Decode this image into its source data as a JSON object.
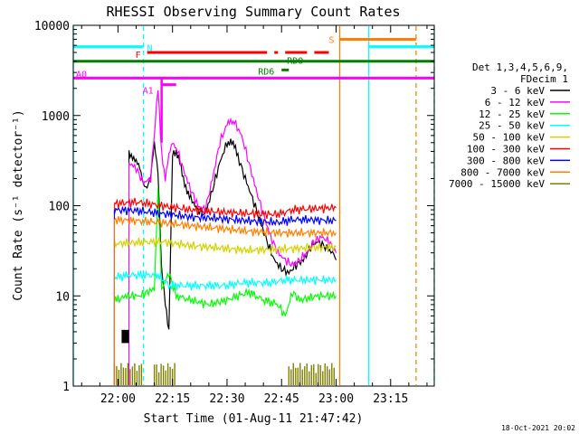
{
  "chart_data": {
    "type": "line",
    "title": "RHESSI Observing Summary Count Rates",
    "xlabel": "Start Time (01-Aug-11 21:47:42)",
    "ylabel": "Count Rate (s⁻¹ detector⁻¹)",
    "yscale": "log",
    "xlim": [
      "21:47:42",
      "23:27:00"
    ],
    "ylim": [
      1,
      10000
    ],
    "x_ticks": [
      "22:00",
      "22:15",
      "22:30",
      "22:45",
      "23:00",
      "23:15"
    ],
    "y_ticks": [
      "1",
      "10",
      "100",
      "1000",
      "10000"
    ],
    "grid": false,
    "legend": {
      "position": "right",
      "title_lines": [
        "Det 1,3,4,5,6,9,",
        "FDecim 1"
      ],
      "entries": [
        "3 - 6 keV",
        "6 - 12 keV",
        "12 - 25 keV",
        "25 - 50 keV",
        "50 - 100 keV",
        "100 - 300 keV",
        "300 - 800 keV",
        "800 - 7000 keV",
        "7000 - 15000 keV"
      ]
    },
    "series": [
      {
        "name": "3 - 6 keV",
        "color": "#000000",
        "x": [
          "22:03:00",
          "22:04:00",
          "22:05:00",
          "22:06:00",
          "22:07:00",
          "22:08:00",
          "22:09:00",
          "22:10:00",
          "22:11:00",
          "22:12:00",
          "22:13:00",
          "22:14:00",
          "22:15:00",
          "22:16:00",
          "22:17:00",
          "22:18:00",
          "22:19:00",
          "22:20:00",
          "22:22:00",
          "22:24:00",
          "22:26:00",
          "22:28:00",
          "22:30:00",
          "22:31:00",
          "22:32:00",
          "22:33:00",
          "22:35:00",
          "22:37:00",
          "22:39:00",
          "22:41:00",
          "22:43:00",
          "22:45:00",
          "22:47:00",
          "22:49:00",
          "22:51:00",
          "22:53:00",
          "22:55:00",
          "22:57:00",
          "22:59:00",
          "23:00:00"
        ],
        "y": [
          400,
          350,
          300,
          260,
          180,
          160,
          200,
          500,
          250,
          20,
          8,
          4,
          400,
          380,
          300,
          200,
          150,
          120,
          90,
          80,
          150,
          300,
          500,
          520,
          450,
          350,
          200,
          120,
          70,
          40,
          25,
          20,
          18,
          22,
          25,
          35,
          40,
          35,
          30,
          25
        ]
      },
      {
        "name": "6 - 12 keV",
        "color": "#ff00ff",
        "x": [
          "22:03:00",
          "22:05:00",
          "22:07:00",
          "22:09:00",
          "22:11:00",
          "22:12:00",
          "22:13:00",
          "22:14:00",
          "22:15:00",
          "22:16:00",
          "22:18:00",
          "22:20:00",
          "22:22:00",
          "22:24:00",
          "22:26:00",
          "22:28:00",
          "22:30:00",
          "22:31:00",
          "22:32:00",
          "22:34:00",
          "22:36:00",
          "22:38:00",
          "22:40:00",
          "22:42:00",
          "22:44:00",
          "22:46:00",
          "22:48:00",
          "22:50:00",
          "22:52:00",
          "22:54:00",
          "22:56:00",
          "22:58:00",
          "23:00:00"
        ],
        "y": [
          300,
          260,
          180,
          200,
          2000,
          400,
          200,
          350,
          500,
          450,
          250,
          150,
          100,
          90,
          200,
          500,
          800,
          900,
          850,
          600,
          300,
          150,
          80,
          45,
          30,
          25,
          22,
          25,
          30,
          40,
          45,
          40,
          30
        ]
      },
      {
        "name": "12 - 25 keV",
        "color": "#00ff00",
        "x": [
          "21:59:00",
          "22:00:00",
          "22:02:00",
          "22:04:00",
          "22:06:00",
          "22:08:00",
          "22:10:00",
          "22:11:00",
          "22:12:00",
          "22:14:00",
          "22:16:00",
          "22:20:00",
          "22:25:00",
          "22:30:00",
          "22:33:00",
          "22:36:00",
          "22:40:00",
          "22:44:00",
          "22:46:00",
          "22:48:00",
          "22:50:00",
          "22:55:00",
          "23:00:00"
        ],
        "y": [
          9,
          9,
          10,
          10,
          10,
          11,
          12,
          150,
          12,
          18,
          10,
          9,
          8,
          9,
          10,
          11,
          9,
          8,
          6,
          11,
          9,
          10,
          10
        ]
      },
      {
        "name": "25 - 50 keV",
        "color": "#00ffff",
        "x": [
          "21:59:00",
          "22:03:00",
          "22:07:00",
          "22:11:00",
          "22:14:00",
          "22:18:00",
          "22:22:00",
          "22:26:00",
          "22:30:00",
          "22:34:00",
          "22:38:00",
          "22:42:00",
          "22:46:00",
          "22:50:00",
          "22:55:00",
          "23:00:00"
        ],
        "y": [
          16,
          17,
          17,
          17,
          13,
          13,
          13,
          13,
          13,
          14,
          14,
          14,
          15,
          15,
          15,
          15
        ]
      },
      {
        "name": "50 - 100 keV",
        "color": "#d2d200",
        "x": [
          "21:59:00",
          "22:05:00",
          "22:12:00",
          "22:20:00",
          "22:28:00",
          "22:36:00",
          "22:44:00",
          "22:52:00",
          "23:00:00"
        ],
        "y": [
          38,
          39,
          40,
          36,
          34,
          32,
          33,
          34,
          35
        ]
      },
      {
        "name": "100 - 300 keV",
        "color": "#ff0000",
        "x": [
          "21:59:00",
          "22:05:00",
          "22:12:00",
          "22:20:00",
          "22:28:00",
          "22:36:00",
          "22:44:00",
          "22:48:00",
          "22:52:00",
          "23:00:00"
        ],
        "y": [
          105,
          110,
          100,
          90,
          85,
          82,
          80,
          90,
          92,
          95
        ]
      },
      {
        "name": "300 - 800 keV",
        "color": "#0000ff",
        "x": [
          "21:59:00",
          "22:05:00",
          "22:12:00",
          "22:20:00",
          "22:28:00",
          "22:36:00",
          "22:44:00",
          "22:48:00",
          "22:52:00",
          "23:00:00"
        ],
        "y": [
          90,
          88,
          82,
          75,
          72,
          68,
          65,
          70,
          70,
          68
        ]
      },
      {
        "name": "800 - 7000 keV",
        "color": "#ff7f00",
        "x": [
          "21:59:00",
          "22:05:00",
          "22:12:00",
          "22:20:00",
          "22:28:00",
          "22:36:00",
          "22:44:00",
          "22:52:00",
          "23:00:00"
        ],
        "y": [
          70,
          68,
          65,
          60,
          56,
          52,
          50,
          50,
          50
        ]
      }
    ],
    "bursts_7000_15000": {
      "name": "7000 - 15000 keV",
      "color": "#808000",
      "value": 1.8,
      "intervals": [
        [
          "21:59:00",
          "22:07:00"
        ],
        [
          "22:10:00",
          "22:16:00"
        ],
        [
          "22:47:00",
          "23:00:00"
        ]
      ]
    },
    "flag_lines": [
      {
        "label": "N",
        "color": "#00ffff",
        "y": 5800,
        "segments": [
          [
            "21:47:42",
            "22:07:00"
          ],
          [
            "23:09:00",
            "23:27:00"
          ]
        ]
      },
      {
        "label": "S",
        "color": "#ff7f00",
        "y": 7000,
        "segments": [
          [
            "23:01:00",
            "23:22:00"
          ]
        ]
      },
      {
        "label": "F",
        "color": "#ff0000",
        "y": 5000,
        "segments": [
          [
            "22:08:00",
            "22:41:00"
          ],
          [
            "22:43:00",
            "22:44:00"
          ],
          [
            "22:46:00",
            "22:52:00"
          ],
          [
            "22:54:00",
            "22:58:00"
          ]
        ]
      },
      {
        "label": "RD0",
        "color": "#008000",
        "y": 4000,
        "segments": [
          [
            "21:47:42",
            "23:27:00"
          ]
        ]
      },
      {
        "label": "RD6",
        "color": "#008000",
        "y": 3200,
        "segments": [
          [
            "22:45:00",
            "22:47:00"
          ]
        ]
      },
      {
        "label": "A0",
        "color": "#ff00ff",
        "y": 2600,
        "segments": [
          [
            "21:47:42",
            "23:27:00"
          ]
        ]
      },
      {
        "label": "A1",
        "color": "#ff00ff",
        "y": 2200,
        "segments": [
          [
            "22:12:00",
            "22:16:00"
          ]
        ]
      }
    ],
    "vlines": [
      {
        "time": "21:47:42",
        "color": "#00ffff",
        "style": "solid"
      },
      {
        "time": "22:07:00",
        "color": "#00ffff",
        "style": "dashed"
      },
      {
        "time": "23:01:00",
        "color": "#ff7f00",
        "style": "solid"
      },
      {
        "time": "23:09:00",
        "color": "#00ffff",
        "style": "solid"
      },
      {
        "time": "23:22:00",
        "color": "#ff7f00",
        "style": "dashed"
      },
      {
        "time": "23:27:00",
        "color": "#00ffff",
        "style": "dashed"
      }
    ]
  },
  "footer": {
    "timestamp": "18-Oct-2021 20:02"
  }
}
